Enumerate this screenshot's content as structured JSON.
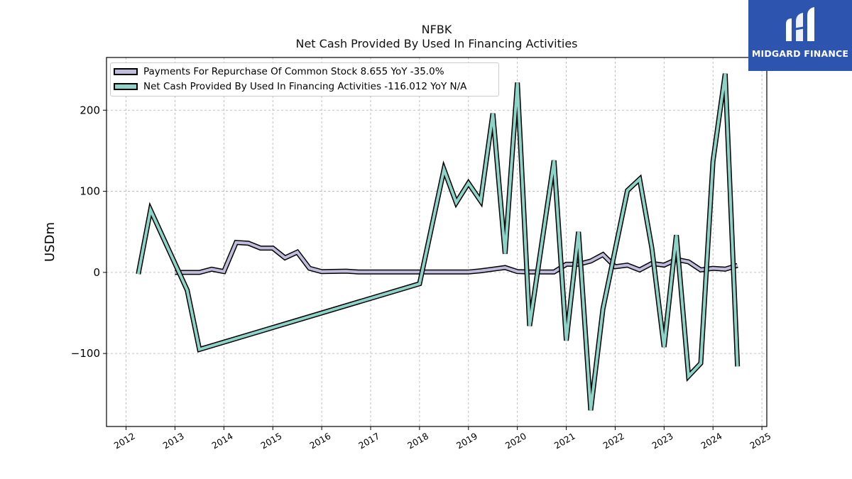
{
  "header": {
    "ticker": "NFBK",
    "subtitle": "Net Cash Provided By Used In Financing Activities"
  },
  "logo": {
    "text": "MIDGARD FINANCE",
    "bg": "#2d55b0"
  },
  "legend": {
    "items": [
      {
        "label": "Payments For Repurchase Of Common Stock  8.655 YoY -35.0%",
        "color": "#bfbcdc"
      },
      {
        "label": "Net Cash Provided By Used In Financing Activities  -116.012 YoY N/A",
        "color": "#8dd3c7"
      }
    ]
  },
  "chart_data": {
    "type": "line",
    "title": "NFBK",
    "subtitle": "Net Cash Provided By Used In Financing Activities",
    "ylabel": "USDm",
    "xlabel": "",
    "xlim": [
      2011.6,
      2025.1
    ],
    "ylim": [
      -190,
      265
    ],
    "x_ticks": [
      "2012",
      "2013",
      "2014",
      "2015",
      "2016",
      "2017",
      "2018",
      "2019",
      "2020",
      "2021",
      "2022",
      "2023",
      "2024",
      "2025"
    ],
    "y_ticks": [
      -100,
      0,
      100,
      200
    ],
    "y_tick_labels": [
      "−100",
      "0",
      "100",
      "200"
    ],
    "grid": true,
    "legend_position": "top-left",
    "series": [
      {
        "name": "Payments For Repurchase Of Common Stock  8.655 YoY -35.0%",
        "color": "#bfbcdc",
        "points": [
          [
            2013.0,
            0
          ],
          [
            2013.25,
            0
          ],
          [
            2013.5,
            0
          ],
          [
            2013.75,
            4
          ],
          [
            2014.0,
            1
          ],
          [
            2014.25,
            37
          ],
          [
            2014.5,
            36
          ],
          [
            2014.75,
            30
          ],
          [
            2015.0,
            30
          ],
          [
            2015.25,
            18
          ],
          [
            2015.5,
            25
          ],
          [
            2015.75,
            5
          ],
          [
            2016.0,
            1
          ],
          [
            2016.5,
            1.5
          ],
          [
            2016.75,
            0.5
          ],
          [
            2017.0,
            0.5
          ],
          [
            2017.5,
            0.5
          ],
          [
            2018.0,
            0.5
          ],
          [
            2018.5,
            0.5
          ],
          [
            2019.0,
            0.5
          ],
          [
            2019.25,
            2
          ],
          [
            2019.5,
            4
          ],
          [
            2019.75,
            6
          ],
          [
            2020.0,
            1
          ],
          [
            2020.25,
            0.5
          ],
          [
            2020.5,
            0.5
          ],
          [
            2020.75,
            0.5
          ],
          [
            2021.0,
            10
          ],
          [
            2021.25,
            10
          ],
          [
            2021.5,
            14
          ],
          [
            2021.75,
            22
          ],
          [
            2022.0,
            7
          ],
          [
            2022.25,
            9
          ],
          [
            2022.5,
            3
          ],
          [
            2022.75,
            11
          ],
          [
            2023.0,
            9
          ],
          [
            2023.25,
            16
          ],
          [
            2023.5,
            13
          ],
          [
            2023.75,
            3
          ],
          [
            2024.0,
            5
          ],
          [
            2024.25,
            4
          ],
          [
            2024.5,
            8.655
          ]
        ]
      },
      {
        "name": "Net Cash Provided By Used In Financing Activities  -116.012 YoY N/A",
        "color": "#8dd3c7",
        "points": [
          [
            2012.25,
            -2
          ],
          [
            2012.5,
            77
          ],
          [
            2013.25,
            -22
          ],
          [
            2013.5,
            -95
          ],
          [
            2018.0,
            -14
          ],
          [
            2018.5,
            127
          ],
          [
            2018.75,
            86
          ],
          [
            2019.0,
            110
          ],
          [
            2019.25,
            88
          ],
          [
            2019.5,
            196
          ],
          [
            2019.75,
            23
          ],
          [
            2020.0,
            234
          ],
          [
            2020.25,
            -66
          ],
          [
            2020.75,
            138
          ],
          [
            2021.0,
            -84
          ],
          [
            2021.25,
            50
          ],
          [
            2021.5,
            -170
          ],
          [
            2021.75,
            -45
          ],
          [
            2022.25,
            101
          ],
          [
            2022.5,
            115
          ],
          [
            2022.75,
            30
          ],
          [
            2023.0,
            -92
          ],
          [
            2023.25,
            46
          ],
          [
            2023.5,
            -128
          ],
          [
            2023.75,
            -112
          ],
          [
            2024.0,
            137
          ],
          [
            2024.25,
            245
          ],
          [
            2024.5,
            -116.012
          ]
        ]
      }
    ]
  }
}
